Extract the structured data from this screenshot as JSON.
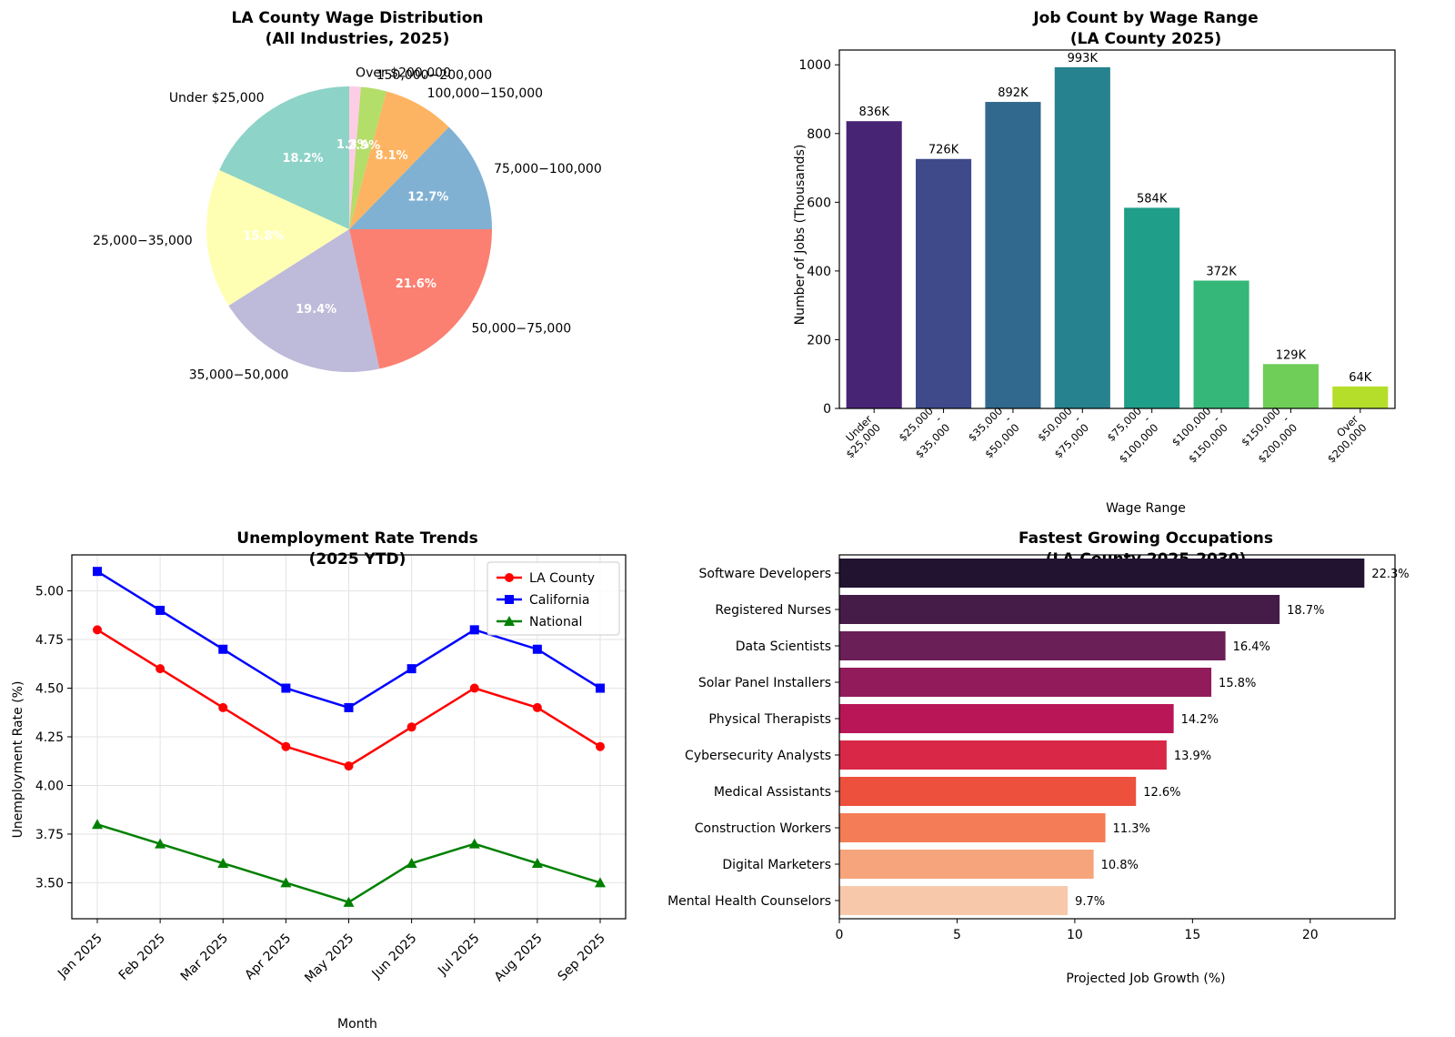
{
  "chart_data": [
    {
      "type": "pie",
      "title": [
        "LA County Wage Distribution",
        "(All Industries, 2025)"
      ],
      "labels": [
        "Under $25,000",
        "$25,000-$35,000",
        "$35,000-$50,000",
        "$50,000-$75,000",
        "$75,000-$100,000",
        "$100,000-$150,000",
        "$150,000-$200,000",
        "Over $200,000"
      ],
      "display_labels": [
        "Under $25,000",
        "25,000−35,000",
        "35,000−50,000",
        "50,000−75,000",
        "75,000−100,000",
        "100,000−150,000",
        "150,000−200,000",
        "Over $200,000"
      ],
      "values": [
        18.2,
        15.8,
        19.4,
        21.6,
        12.7,
        8.1,
        2.9,
        1.3
      ],
      "pct_labels": [
        "18.2%",
        "15.8%",
        "19.4%",
        "21.6%",
        "12.7%",
        "8.1%",
        "2.9%",
        "1.3%"
      ],
      "colors": [
        "#8dd3c7",
        "#ffffb3",
        "#bebada",
        "#fb8072",
        "#80b1d3",
        "#fdb462",
        "#b3de69",
        "#fccde5"
      ],
      "start_angle": 90
    },
    {
      "type": "bar",
      "title": [
        "Job Count by Wage Range",
        "(LA County 2025)"
      ],
      "categories": [
        [
          "Under",
          "$25,000"
        ],
        [
          "$25,000",
          "-",
          "$35,000"
        ],
        [
          "$35,000",
          "-",
          "$50,000"
        ],
        [
          "$50,000",
          "-",
          "$75,000"
        ],
        [
          "$75,000",
          "-",
          "$100,000"
        ],
        [
          "$100,000",
          "-",
          "$150,000"
        ],
        [
          "$150,000",
          "-",
          "$200,000"
        ],
        [
          "Over",
          "$200,000"
        ]
      ],
      "values": [
        836,
        726,
        892,
        993,
        584,
        372,
        129,
        64
      ],
      "bar_labels": [
        "836K",
        "726K",
        "892K",
        "993K",
        "584K",
        "372K",
        "129K",
        "64K"
      ],
      "colors": [
        "#482475",
        "#3e4a89",
        "#31688e",
        "#26828e",
        "#1f9e89",
        "#35b779",
        "#6ece58",
        "#b5de2b"
      ],
      "xlabel": "Wage Range",
      "ylabel": "Number of Jobs (Thousands)",
      "ylim": [
        0,
        1043
      ],
      "yticks": [
        0,
        200,
        400,
        600,
        800,
        1000
      ]
    },
    {
      "type": "line",
      "title": [
        "Unemployment Rate Trends",
        "(2025 YTD)"
      ],
      "x": [
        "Jan 2025",
        "Feb 2025",
        "Mar 2025",
        "Apr 2025",
        "May 2025",
        "Jun 2025",
        "Jul 2025",
        "Aug 2025",
        "Sep 2025"
      ],
      "series": [
        {
          "name": "LA County",
          "values": [
            4.8,
            4.6,
            4.4,
            4.2,
            4.1,
            4.3,
            4.5,
            4.4,
            4.2
          ],
          "color": "#ff0000",
          "marker": "circle"
        },
        {
          "name": "California",
          "values": [
            5.1,
            4.9,
            4.7,
            4.5,
            4.4,
            4.6,
            4.8,
            4.7,
            4.5
          ],
          "color": "#0000ff",
          "marker": "square"
        },
        {
          "name": "National",
          "values": [
            3.8,
            3.7,
            3.6,
            3.5,
            3.4,
            3.6,
            3.7,
            3.6,
            3.5
          ],
          "color": "#008000",
          "marker": "triangle"
        }
      ],
      "xlabel": "Month",
      "ylabel": "Unemployment Rate (%)",
      "ylim": [
        3.315,
        5.185
      ],
      "yticks": [
        "3.50",
        "3.75",
        "4.00",
        "4.25",
        "4.50",
        "4.75",
        "5.00"
      ],
      "grid": true,
      "legend": "top-right"
    },
    {
      "type": "bar",
      "orientation": "horizontal",
      "title": [
        "Fastest Growing Occupations",
        "(LA County 2025-2030)"
      ],
      "categories": [
        "Software Developers",
        "Registered Nurses",
        "Data Scientists",
        "Solar Panel Installers",
        "Physical Therapists",
        "Cybersecurity Analysts",
        "Medical Assistants",
        "Construction Workers",
        "Digital Marketers",
        "Mental Health Counselors"
      ],
      "values": [
        22.3,
        18.7,
        16.4,
        15.8,
        14.2,
        13.9,
        12.6,
        11.3,
        10.8,
        9.7
      ],
      "bar_labels": [
        "22.3%",
        "18.7%",
        "16.4%",
        "15.8%",
        "14.2%",
        "13.9%",
        "12.6%",
        "11.3%",
        "10.8%",
        "9.7%"
      ],
      "colors": [
        "#221331",
        "#451c47",
        "#6a1f56",
        "#921c5b",
        "#b91657",
        "#d92847",
        "#ed513e",
        "#f47c56",
        "#f6a47c",
        "#f7c9aa"
      ],
      "xlabel": "Projected Job Growth (%)",
      "xlim": [
        0,
        23.6
      ],
      "xticks": [
        0,
        5,
        10,
        15,
        20
      ]
    }
  ]
}
